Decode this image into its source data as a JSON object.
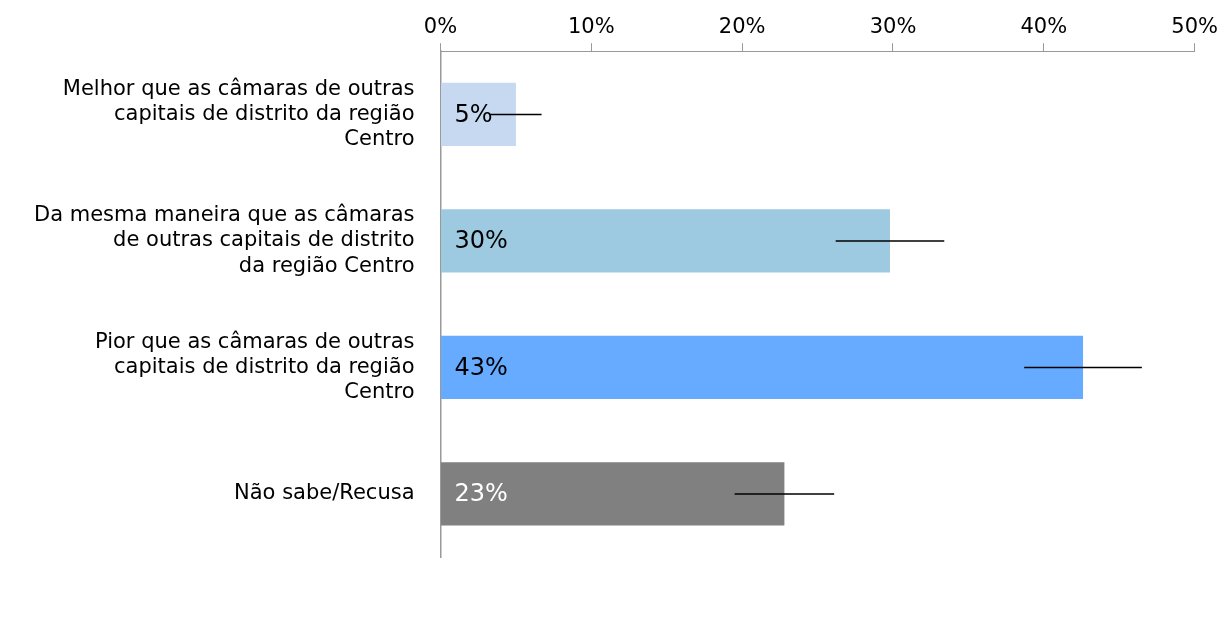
{
  "chart_data": {
    "type": "bar",
    "orientation": "horizontal",
    "categories": [
      "Melhor que as câmaras de outras capitais de distrito da região Centro",
      "Da mesma maneira que as câmaras de outras capitais de distrito da região Centro",
      "Pior que as câmaras de outras capitais de distrito da região Centro",
      "Não sabe/Recusa"
    ],
    "values": [
      5,
      29.8,
      42.6,
      22.8
    ],
    "value_labels": [
      "5%",
      "30%",
      "43%",
      "23%"
    ],
    "colors": [
      "#c6d9f1",
      "#9ecae1",
      "#66abff",
      "#808080"
    ],
    "errors": [
      1.7,
      3.6,
      3.9,
      3.3
    ],
    "xlim": [
      0,
      50
    ],
    "xticks": [
      {
        "value": 0,
        "label": "0%"
      },
      {
        "value": 10,
        "label": "10%"
      },
      {
        "value": 20,
        "label": "20%"
      },
      {
        "value": 30,
        "label": "30%"
      },
      {
        "value": 40,
        "label": "40%"
      },
      {
        "value": 50,
        "label": "50%"
      }
    ],
    "grid": false,
    "legend": false
  }
}
